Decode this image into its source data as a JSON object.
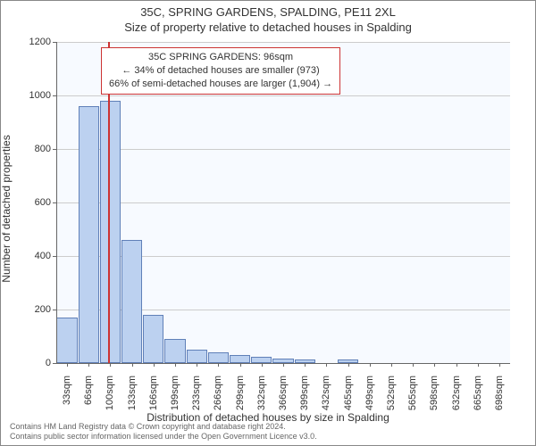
{
  "title_main": "35C, SPRING GARDENS, SPALDING, PE11 2XL",
  "title_sub": "Size of property relative to detached houses in Spalding",
  "chart": {
    "type": "histogram",
    "background_color": "#f7faff",
    "grid_color": "#cccccc",
    "axis_color": "#666666",
    "y_label": "Number of detached properties",
    "x_label": "Distribution of detached houses by size in Spalding",
    "y_ticks": [
      0,
      200,
      400,
      600,
      800,
      1000,
      1200
    ],
    "ylim": [
      0,
      1200
    ],
    "x_tick_labels": [
      "33sqm",
      "66sqm",
      "100sqm",
      "133sqm",
      "166sqm",
      "199sqm",
      "233sqm",
      "266sqm",
      "299sqm",
      "332sqm",
      "366sqm",
      "399sqm",
      "432sqm",
      "465sqm",
      "499sqm",
      "532sqm",
      "565sqm",
      "598sqm",
      "632sqm",
      "665sqm",
      "698sqm"
    ],
    "bar_values": [
      170,
      960,
      980,
      460,
      180,
      90,
      50,
      40,
      30,
      25,
      18,
      14,
      0,
      14,
      0,
      0,
      0,
      0,
      0,
      0,
      0
    ],
    "bar_color": "#bcd1f0",
    "bar_border_color": "#6080b8",
    "marker_position_sqm": 96,
    "marker_color": "#cc3333",
    "label_fontsize": 11,
    "axis_label_fontsize": 12,
    "title_fontsize": 13
  },
  "annotation": {
    "line1": "35C SPRING GARDENS: 96sqm",
    "line2": "← 34% of detached houses are smaller (973)",
    "line3": "66% of semi-detached houses are larger (1,904) →",
    "border_color": "#cc3333",
    "background": "#ffffff"
  },
  "footer": {
    "line1": "Contains HM Land Registry data © Crown copyright and database right 2024.",
    "line2": "Contains public sector information licensed under the Open Government Licence v3.0."
  }
}
